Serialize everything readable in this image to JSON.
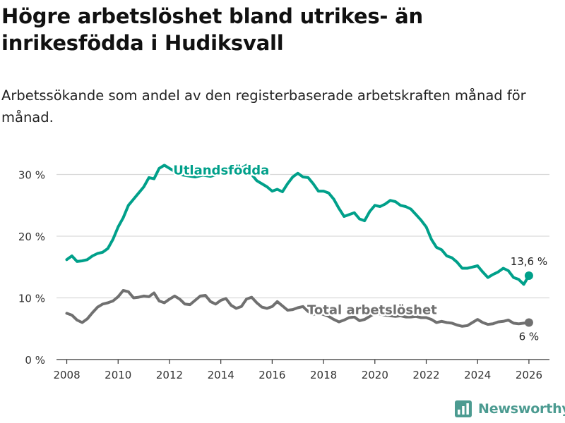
{
  "title": "Högre arbetslöshet bland utrikes- än inrikesfödda i Hudiksvall",
  "subtitle": "Arbetssökande som andel av den registerbaserade arbetskraften månad för månad.",
  "brand": {
    "name": "Newsworthy",
    "logo_icon": "bar-chart-icon"
  },
  "colors": {
    "foreign_born": "#00a08a",
    "total": "#707070",
    "grid": "#d9d9d9",
    "brand": "#4c9b91"
  },
  "chart_data": {
    "type": "line",
    "title": "Högre arbetslöshet bland utrikes- än inrikesfödda i Hudiksvall",
    "xlabel": "",
    "ylabel": "",
    "xlim": [
      2007.6,
      2026.8
    ],
    "ylim": [
      0,
      32
    ],
    "grid": true,
    "x_ticks": [
      {
        "value": 2008,
        "label": "2008"
      },
      {
        "value": 2010,
        "label": "2010"
      },
      {
        "value": 2012,
        "label": "2012"
      },
      {
        "value": 2014,
        "label": "2014"
      },
      {
        "value": 2016,
        "label": "2016"
      },
      {
        "value": 2018,
        "label": "2018"
      },
      {
        "value": 2020,
        "label": "2020"
      },
      {
        "value": 2022,
        "label": "2022"
      },
      {
        "value": 2024,
        "label": "2024"
      },
      {
        "value": 2026,
        "label": "2026"
      }
    ],
    "y_ticks": [
      {
        "value": 0,
        "label": "0 %"
      },
      {
        "value": 10,
        "label": "10 %"
      },
      {
        "value": 20,
        "label": "20 %"
      },
      {
        "value": 30,
        "label": "30 %"
      }
    ],
    "series": [
      {
        "name": "Utlandsfödda",
        "color": "#00a08a",
        "end_label": "13,6 %",
        "points": [
          [
            2008.0,
            16.2
          ],
          [
            2008.2,
            16.8
          ],
          [
            2008.4,
            15.9
          ],
          [
            2008.6,
            16.0
          ],
          [
            2008.8,
            16.2
          ],
          [
            2009.0,
            16.8
          ],
          [
            2009.2,
            17.2
          ],
          [
            2009.4,
            17.4
          ],
          [
            2009.6,
            18.0
          ],
          [
            2009.8,
            19.5
          ],
          [
            2010.0,
            21.5
          ],
          [
            2010.2,
            23.0
          ],
          [
            2010.4,
            25.0
          ],
          [
            2010.6,
            26.0
          ],
          [
            2010.8,
            27.0
          ],
          [
            2011.0,
            28.0
          ],
          [
            2011.2,
            29.5
          ],
          [
            2011.4,
            29.3
          ],
          [
            2011.6,
            31.0
          ],
          [
            2011.8,
            31.5
          ],
          [
            2012.0,
            31.0
          ],
          [
            2012.2,
            30.5
          ],
          [
            2012.4,
            30.0
          ],
          [
            2012.7,
            29.8
          ],
          [
            2013.0,
            29.6
          ],
          [
            2013.3,
            29.9
          ],
          [
            2013.6,
            29.7
          ],
          [
            2014.0,
            30.2
          ],
          [
            2014.4,
            30.6
          ],
          [
            2014.8,
            31.0
          ],
          [
            2015.0,
            31.5
          ],
          [
            2015.2,
            30.0
          ],
          [
            2015.4,
            29.0
          ],
          [
            2015.6,
            28.5
          ],
          [
            2015.8,
            28.0
          ],
          [
            2016.0,
            27.3
          ],
          [
            2016.2,
            27.6
          ],
          [
            2016.4,
            27.2
          ],
          [
            2016.6,
            28.5
          ],
          [
            2016.8,
            29.6
          ],
          [
            2017.0,
            30.2
          ],
          [
            2017.2,
            29.6
          ],
          [
            2017.4,
            29.5
          ],
          [
            2017.6,
            28.5
          ],
          [
            2017.8,
            27.3
          ],
          [
            2018.0,
            27.3
          ],
          [
            2018.2,
            27.0
          ],
          [
            2018.4,
            26.0
          ],
          [
            2018.6,
            24.5
          ],
          [
            2018.8,
            23.2
          ],
          [
            2019.0,
            23.5
          ],
          [
            2019.2,
            23.8
          ],
          [
            2019.4,
            22.8
          ],
          [
            2019.6,
            22.5
          ],
          [
            2019.8,
            24.0
          ],
          [
            2020.0,
            25.0
          ],
          [
            2020.2,
            24.8
          ],
          [
            2020.4,
            25.2
          ],
          [
            2020.6,
            25.8
          ],
          [
            2020.8,
            25.6
          ],
          [
            2021.0,
            25.0
          ],
          [
            2021.2,
            24.8
          ],
          [
            2021.4,
            24.4
          ],
          [
            2021.6,
            23.5
          ],
          [
            2021.8,
            22.6
          ],
          [
            2022.0,
            21.5
          ],
          [
            2022.2,
            19.5
          ],
          [
            2022.4,
            18.2
          ],
          [
            2022.6,
            17.8
          ],
          [
            2022.8,
            16.8
          ],
          [
            2023.0,
            16.5
          ],
          [
            2023.2,
            15.8
          ],
          [
            2023.4,
            14.8
          ],
          [
            2023.6,
            14.8
          ],
          [
            2023.8,
            15.0
          ],
          [
            2024.0,
            15.2
          ],
          [
            2024.2,
            14.2
          ],
          [
            2024.4,
            13.3
          ],
          [
            2024.6,
            13.8
          ],
          [
            2024.8,
            14.2
          ],
          [
            2025.0,
            14.8
          ],
          [
            2025.2,
            14.4
          ],
          [
            2025.4,
            13.3
          ],
          [
            2025.6,
            13.0
          ],
          [
            2025.8,
            12.2
          ],
          [
            2026.0,
            13.6
          ]
        ]
      },
      {
        "name": "Total arbetslöshet",
        "color": "#707070",
        "end_label": "6 %",
        "points": [
          [
            2008.0,
            7.5
          ],
          [
            2008.2,
            7.2
          ],
          [
            2008.4,
            6.4
          ],
          [
            2008.6,
            6.0
          ],
          [
            2008.8,
            6.6
          ],
          [
            2009.0,
            7.6
          ],
          [
            2009.2,
            8.5
          ],
          [
            2009.4,
            9.0
          ],
          [
            2009.6,
            9.2
          ],
          [
            2009.8,
            9.5
          ],
          [
            2010.0,
            10.2
          ],
          [
            2010.2,
            11.2
          ],
          [
            2010.4,
            11.0
          ],
          [
            2010.6,
            10.0
          ],
          [
            2010.8,
            10.1
          ],
          [
            2011.0,
            10.3
          ],
          [
            2011.2,
            10.2
          ],
          [
            2011.4,
            10.8
          ],
          [
            2011.6,
            9.5
          ],
          [
            2011.8,
            9.2
          ],
          [
            2012.0,
            9.8
          ],
          [
            2012.2,
            10.3
          ],
          [
            2012.4,
            9.8
          ],
          [
            2012.6,
            9.0
          ],
          [
            2012.8,
            8.9
          ],
          [
            2013.0,
            9.6
          ],
          [
            2013.2,
            10.3
          ],
          [
            2013.4,
            10.4
          ],
          [
            2013.6,
            9.4
          ],
          [
            2013.8,
            9.0
          ],
          [
            2014.0,
            9.6
          ],
          [
            2014.2,
            9.9
          ],
          [
            2014.4,
            8.8
          ],
          [
            2014.6,
            8.3
          ],
          [
            2014.8,
            8.6
          ],
          [
            2015.0,
            9.8
          ],
          [
            2015.2,
            10.1
          ],
          [
            2015.4,
            9.2
          ],
          [
            2015.6,
            8.5
          ],
          [
            2015.8,
            8.3
          ],
          [
            2016.0,
            8.6
          ],
          [
            2016.2,
            9.4
          ],
          [
            2016.4,
            8.7
          ],
          [
            2016.6,
            8.0
          ],
          [
            2016.8,
            8.1
          ],
          [
            2017.0,
            8.4
          ],
          [
            2017.2,
            8.6
          ],
          [
            2017.4,
            7.8
          ],
          [
            2017.6,
            7.3
          ],
          [
            2017.8,
            7.6
          ],
          [
            2018.0,
            7.3
          ],
          [
            2018.2,
            7.0
          ],
          [
            2018.4,
            6.5
          ],
          [
            2018.6,
            6.1
          ],
          [
            2018.8,
            6.4
          ],
          [
            2019.0,
            6.8
          ],
          [
            2019.2,
            6.9
          ],
          [
            2019.4,
            6.3
          ],
          [
            2019.6,
            6.5
          ],
          [
            2019.8,
            7.0
          ],
          [
            2020.0,
            7.5
          ],
          [
            2020.2,
            7.4
          ],
          [
            2020.4,
            7.2
          ],
          [
            2020.6,
            7.1
          ],
          [
            2020.8,
            7.0
          ],
          [
            2021.0,
            7.1
          ],
          [
            2021.2,
            6.9
          ],
          [
            2021.4,
            6.9
          ],
          [
            2021.6,
            7.0
          ],
          [
            2021.8,
            6.8
          ],
          [
            2022.0,
            6.8
          ],
          [
            2022.2,
            6.5
          ],
          [
            2022.4,
            6.0
          ],
          [
            2022.6,
            6.2
          ],
          [
            2022.8,
            6.0
          ],
          [
            2023.0,
            5.9
          ],
          [
            2023.2,
            5.6
          ],
          [
            2023.4,
            5.4
          ],
          [
            2023.6,
            5.5
          ],
          [
            2023.8,
            6.0
          ],
          [
            2024.0,
            6.5
          ],
          [
            2024.2,
            6.0
          ],
          [
            2024.4,
            5.7
          ],
          [
            2024.6,
            5.8
          ],
          [
            2024.8,
            6.1
          ],
          [
            2025.0,
            6.2
          ],
          [
            2025.2,
            6.4
          ],
          [
            2025.4,
            5.9
          ],
          [
            2025.6,
            5.8
          ],
          [
            2025.8,
            5.9
          ],
          [
            2026.0,
            6.0
          ]
        ]
      }
    ]
  }
}
